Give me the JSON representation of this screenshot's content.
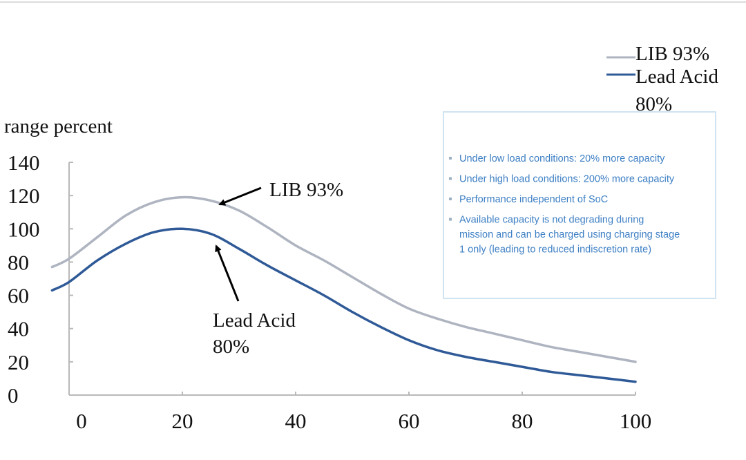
{
  "chart_data": {
    "type": "line",
    "title": "",
    "ylabel": "range percent",
    "xlabel": "",
    "xlim": [
      0,
      100
    ],
    "ylim": [
      0,
      140
    ],
    "x_ticks": [
      "0",
      "20",
      "40",
      "60",
      "80",
      "100"
    ],
    "y_ticks": [
      "0",
      "20",
      "40",
      "60",
      "80",
      "100",
      "120",
      "140"
    ],
    "grid": false,
    "legend_position": "top-right",
    "series": [
      {
        "name": "LIB 93%",
        "color": "#aeb4c0",
        "x": [
          -3,
          0,
          5,
          10,
          15,
          20,
          25,
          30,
          35,
          40,
          45,
          50,
          55,
          60,
          65,
          70,
          75,
          80,
          85,
          90,
          95,
          100
        ],
        "values": [
          77,
          82,
          95,
          108,
          116,
          119,
          117,
          111,
          101,
          90,
          81,
          71,
          61,
          52,
          46,
          41,
          37,
          33,
          29,
          26,
          23,
          20
        ]
      },
      {
        "name": "Lead Acid 80%",
        "color": "#2f5a97",
        "x": [
          -3,
          0,
          5,
          10,
          15,
          20,
          25,
          30,
          35,
          40,
          45,
          50,
          55,
          60,
          65,
          70,
          75,
          80,
          85,
          90,
          95,
          100
        ],
        "values": [
          63,
          68,
          81,
          91,
          98,
          100,
          97,
          88,
          78,
          69,
          60,
          50,
          41,
          33,
          27,
          23,
          20,
          17,
          14,
          12,
          10,
          8
        ]
      }
    ],
    "annotations": [
      {
        "text": "LIB 93%",
        "target_series": "LIB 93%",
        "target_x": 26
      },
      {
        "text_lines": [
          "Lead Acid",
          "80%"
        ],
        "target_series": "Lead Acid 80%",
        "target_x": 26
      }
    ]
  },
  "legend": {
    "lib": [
      "LIB 93%"
    ],
    "lead": [
      "Lead Acid",
      "80%"
    ]
  },
  "info_box": {
    "bullets": [
      [
        "Under low load conditions: 20% more capacity"
      ],
      [
        "Under high load conditions: 200% more capacity"
      ],
      [
        "Performance independent of SoC"
      ],
      [
        "Available capacity is not degrading during",
        "mission and can be charged using charging stage",
        "1 only (leading to reduced indiscretion rate)"
      ]
    ]
  }
}
